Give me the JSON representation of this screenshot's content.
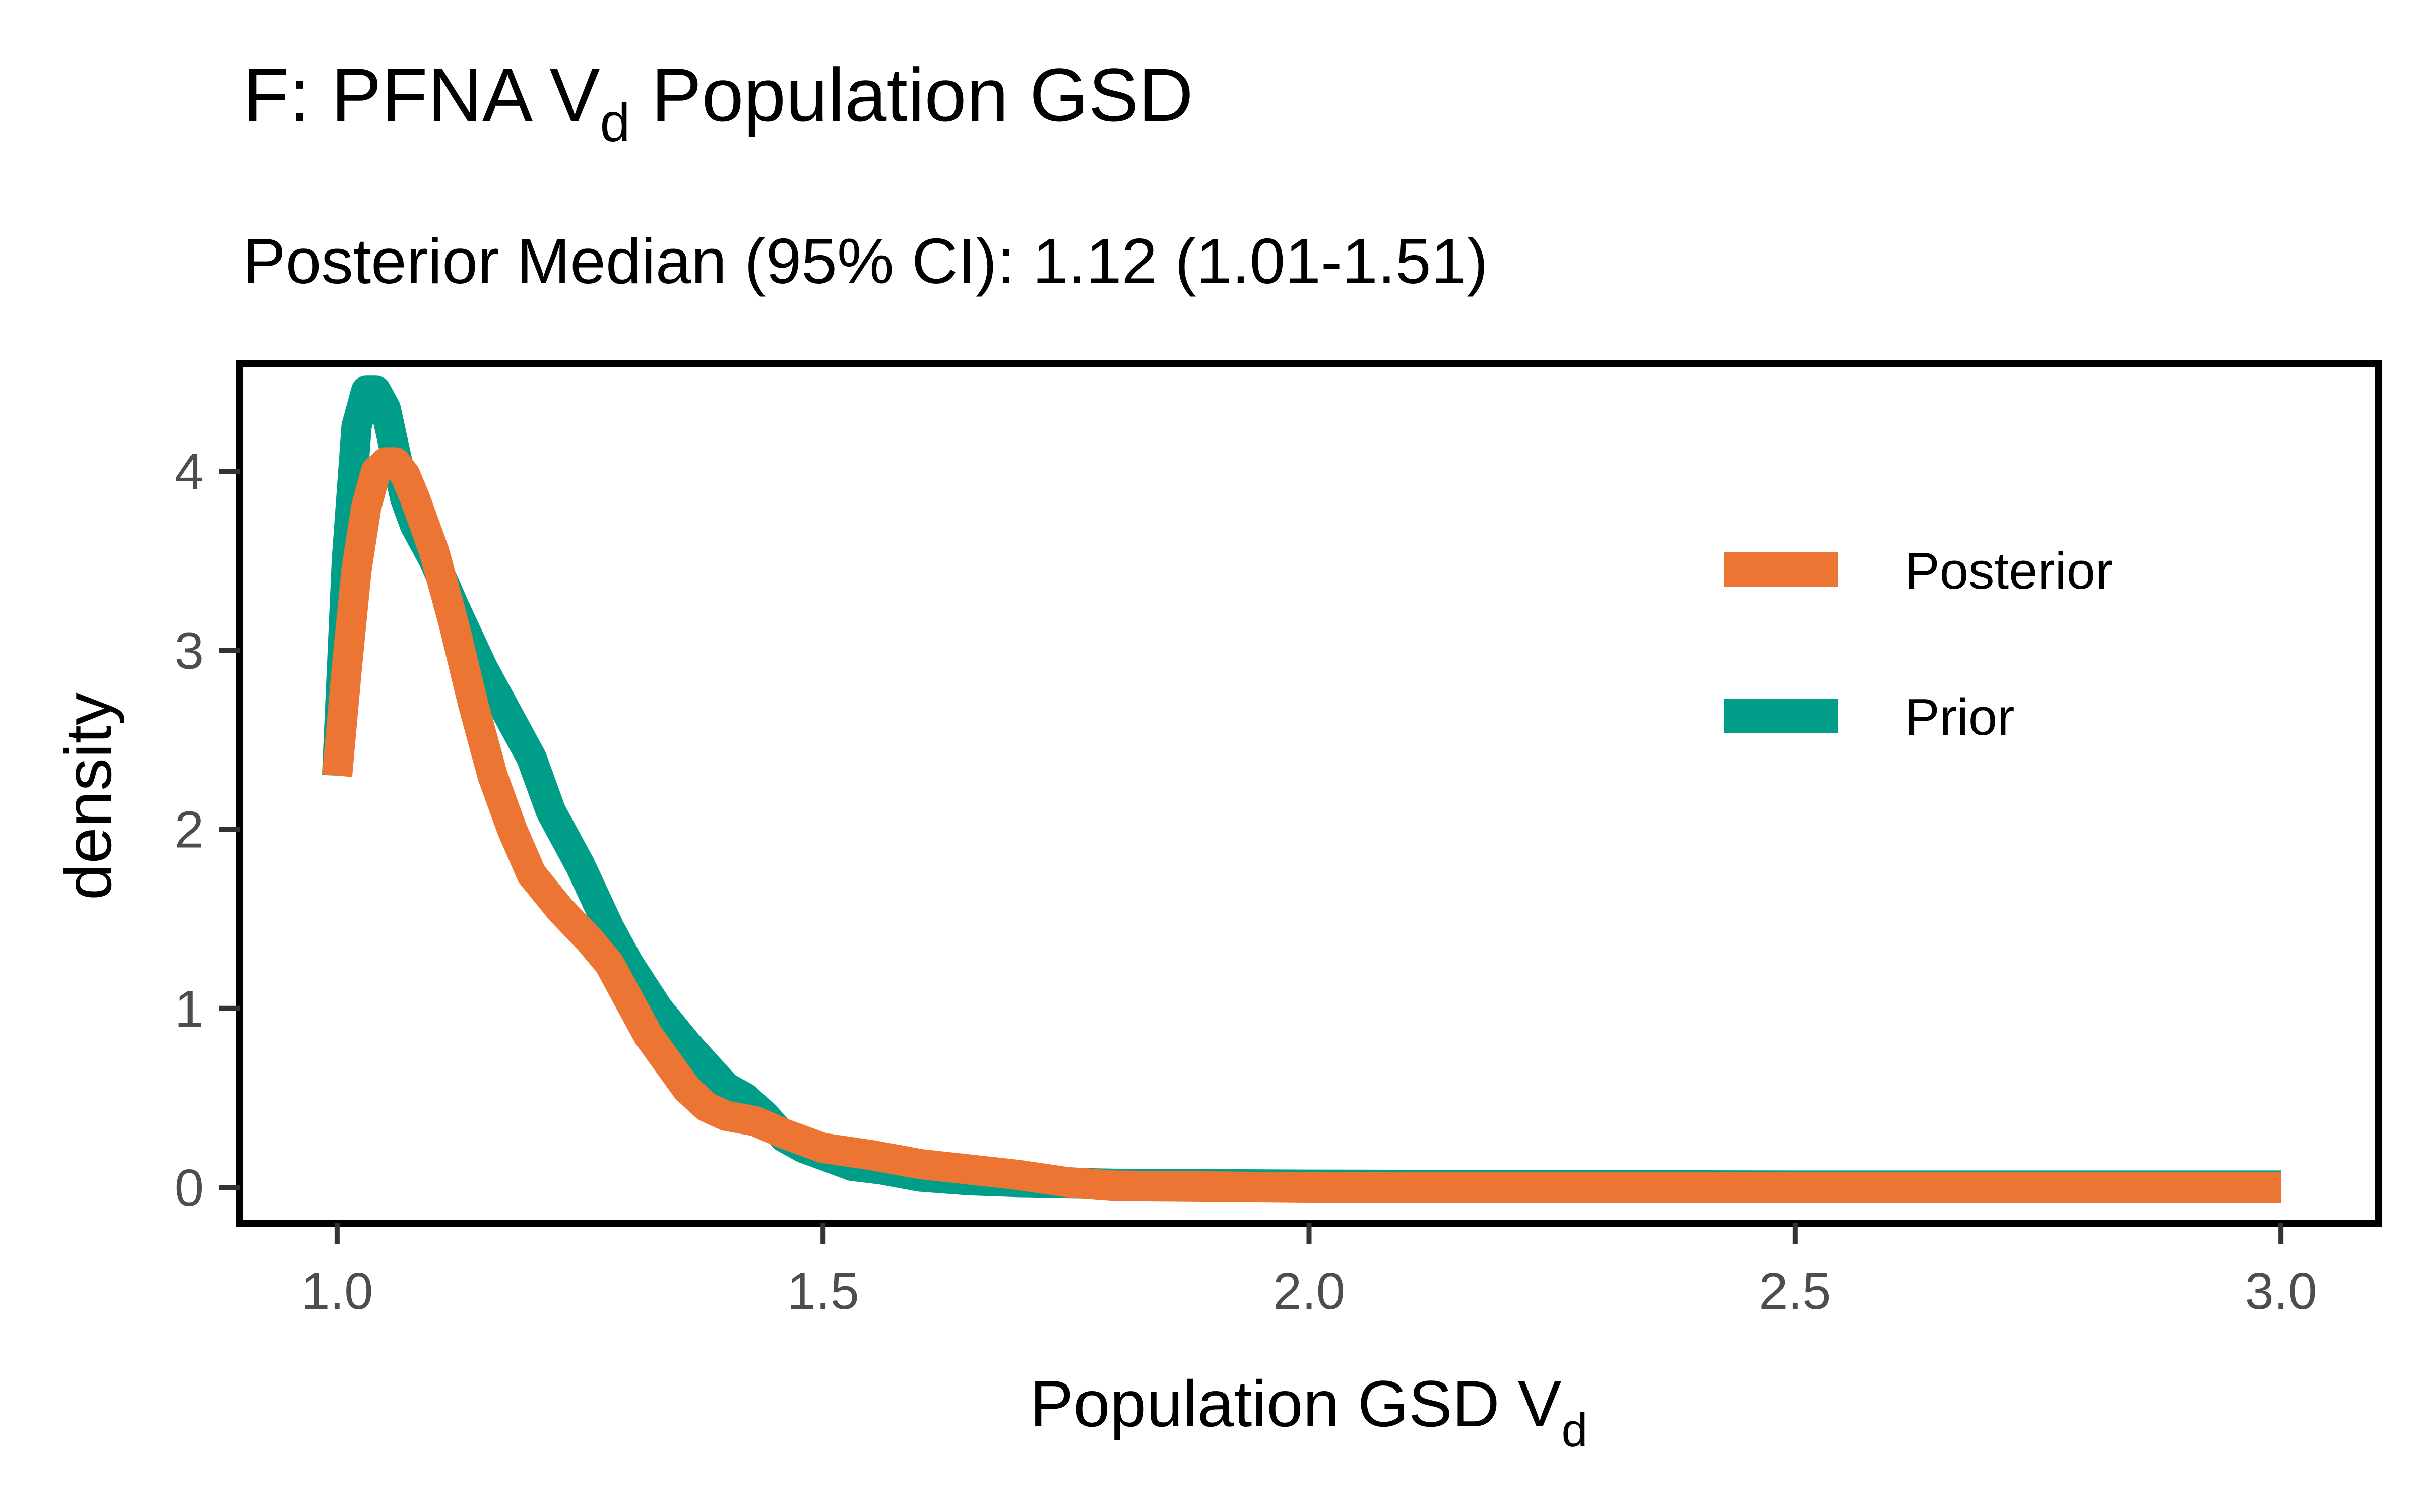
{
  "chart_data": {
    "type": "line",
    "title": {
      "prefix": "F: PFNA V",
      "subscript": "d",
      "suffix": " Population GSD"
    },
    "subtitle": "Posterior Median (95% CI): 1.12 (1.01-1.51)",
    "xlabel": {
      "main": "Population GSD V",
      "subscript": "d"
    },
    "ylabel": "density",
    "xlim": [
      0.9,
      3.1
    ],
    "ylim": [
      -0.2,
      4.6
    ],
    "x_ticks": [
      1.0,
      1.5,
      2.0,
      2.5,
      3.0
    ],
    "x_tick_labels": [
      "1.0",
      "1.5",
      "2.0",
      "2.5",
      "3.0"
    ],
    "y_ticks": [
      0,
      1,
      2,
      3,
      4
    ],
    "y_tick_labels": [
      "0",
      "1",
      "2",
      "3",
      "4"
    ],
    "grid": false,
    "legend_position": "top-right",
    "series": [
      {
        "name": "Prior",
        "color": "#009e89",
        "points": [
          [
            1.0,
            2.3
          ],
          [
            1.01,
            3.5
          ],
          [
            1.02,
            4.25
          ],
          [
            1.03,
            4.45
          ],
          [
            1.04,
            4.45
          ],
          [
            1.05,
            4.35
          ],
          [
            1.06,
            4.1
          ],
          [
            1.07,
            3.85
          ],
          [
            1.08,
            3.7
          ],
          [
            1.1,
            3.5
          ],
          [
            1.12,
            3.25
          ],
          [
            1.15,
            2.9
          ],
          [
            1.18,
            2.6
          ],
          [
            1.2,
            2.4
          ],
          [
            1.22,
            2.1
          ],
          [
            1.25,
            1.8
          ],
          [
            1.28,
            1.45
          ],
          [
            1.3,
            1.25
          ],
          [
            1.33,
            1.0
          ],
          [
            1.36,
            0.8
          ],
          [
            1.38,
            0.68
          ],
          [
            1.4,
            0.56
          ],
          [
            1.42,
            0.5
          ],
          [
            1.44,
            0.4
          ],
          [
            1.46,
            0.28
          ],
          [
            1.48,
            0.22
          ],
          [
            1.5,
            0.18
          ],
          [
            1.53,
            0.12
          ],
          [
            1.56,
            0.1
          ],
          [
            1.6,
            0.06
          ],
          [
            1.65,
            0.04
          ],
          [
            1.7,
            0.03
          ],
          [
            1.8,
            0.02
          ],
          [
            2.0,
            0.015
          ],
          [
            2.5,
            0.01
          ],
          [
            3.0,
            0.01
          ]
        ]
      },
      {
        "name": "Posterior",
        "color": "#ed7534",
        "points": [
          [
            1.0,
            2.3
          ],
          [
            1.01,
            2.9
          ],
          [
            1.02,
            3.45
          ],
          [
            1.03,
            3.8
          ],
          [
            1.04,
            4.0
          ],
          [
            1.05,
            4.05
          ],
          [
            1.06,
            4.05
          ],
          [
            1.07,
            3.98
          ],
          [
            1.08,
            3.85
          ],
          [
            1.1,
            3.55
          ],
          [
            1.12,
            3.15
          ],
          [
            1.14,
            2.7
          ],
          [
            1.16,
            2.3
          ],
          [
            1.18,
            2.0
          ],
          [
            1.2,
            1.75
          ],
          [
            1.23,
            1.55
          ],
          [
            1.26,
            1.38
          ],
          [
            1.28,
            1.25
          ],
          [
            1.3,
            1.05
          ],
          [
            1.32,
            0.85
          ],
          [
            1.34,
            0.7
          ],
          [
            1.36,
            0.55
          ],
          [
            1.38,
            0.45
          ],
          [
            1.4,
            0.4
          ],
          [
            1.43,
            0.37
          ],
          [
            1.46,
            0.3
          ],
          [
            1.5,
            0.22
          ],
          [
            1.55,
            0.18
          ],
          [
            1.6,
            0.13
          ],
          [
            1.65,
            0.1
          ],
          [
            1.7,
            0.07
          ],
          [
            1.75,
            0.03
          ],
          [
            1.8,
            0.01
          ],
          [
            2.0,
            0.0
          ],
          [
            2.5,
            0.0
          ],
          [
            3.0,
            0.0
          ]
        ]
      }
    ],
    "legend_order": [
      "Posterior",
      "Prior"
    ]
  }
}
